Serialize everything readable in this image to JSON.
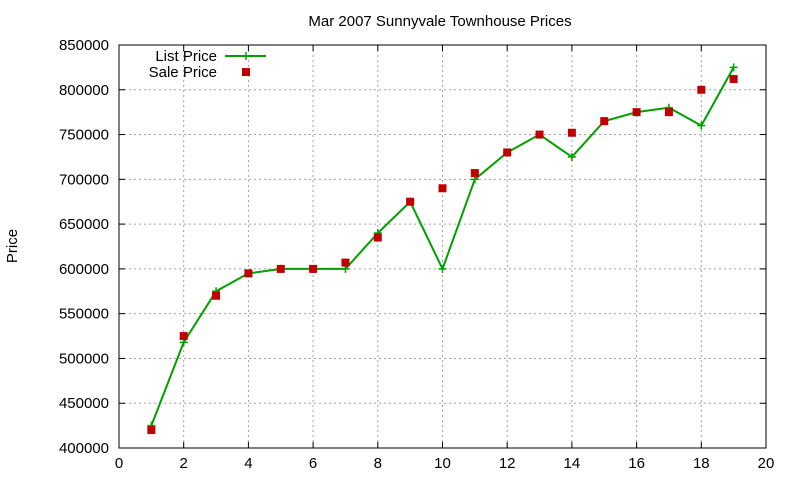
{
  "chart_data": {
    "type": "line",
    "title": "Mar 2007 Sunnyvale Townhouse Prices",
    "xlabel": "",
    "ylabel": "Price",
    "xlim": [
      0,
      20
    ],
    "ylim": [
      400000,
      850000
    ],
    "xticks": [
      0,
      2,
      4,
      6,
      8,
      10,
      12,
      14,
      16,
      18,
      20
    ],
    "yticks": [
      400000,
      450000,
      500000,
      550000,
      600000,
      650000,
      700000,
      750000,
      800000,
      850000
    ],
    "grid": true,
    "legend_position": "top-left",
    "series": [
      {
        "name": "List Price",
        "style": "line-with-plus-markers",
        "color": "#00a000",
        "x": [
          1,
          2,
          3,
          4,
          5,
          6,
          7,
          8,
          9,
          10,
          11,
          12,
          13,
          14,
          15,
          16,
          17,
          18,
          19
        ],
        "y": [
          425000,
          518000,
          575000,
          595000,
          600000,
          600000,
          600000,
          640000,
          675000,
          600000,
          700000,
          730000,
          750000,
          725000,
          765000,
          775000,
          780000,
          760000,
          825000
        ]
      },
      {
        "name": "Sale Price",
        "style": "square-markers",
        "color": "#c00000",
        "x": [
          1,
          2,
          3,
          4,
          5,
          6,
          7,
          8,
          9,
          10,
          11,
          12,
          13,
          14,
          15,
          16,
          17,
          18,
          19
        ],
        "y": [
          420000,
          525000,
          570000,
          595000,
          600000,
          600000,
          607000,
          635000,
          675000,
          690000,
          707000,
          730000,
          750000,
          752000,
          765000,
          775000,
          775000,
          800000,
          812000
        ]
      }
    ]
  }
}
